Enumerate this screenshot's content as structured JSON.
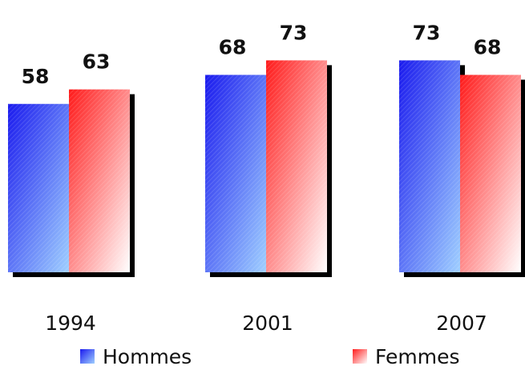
{
  "chart_data": {
    "type": "bar",
    "categories": [
      "1994",
      "2001",
      "2007"
    ],
    "series": [
      {
        "name": "Hommes",
        "values": [
          58,
          68,
          73
        ],
        "color": "#1a1aee",
        "color_light": "#9fcfff"
      },
      {
        "name": "Femmes",
        "values": [
          63,
          73,
          68
        ],
        "color": "#ff1a1a",
        "color_light": "#ffffff"
      }
    ],
    "ylim": [
      0,
      80
    ],
    "grid": false,
    "legend_position": "bottom",
    "title": "",
    "xlabel": "",
    "ylabel": ""
  }
}
